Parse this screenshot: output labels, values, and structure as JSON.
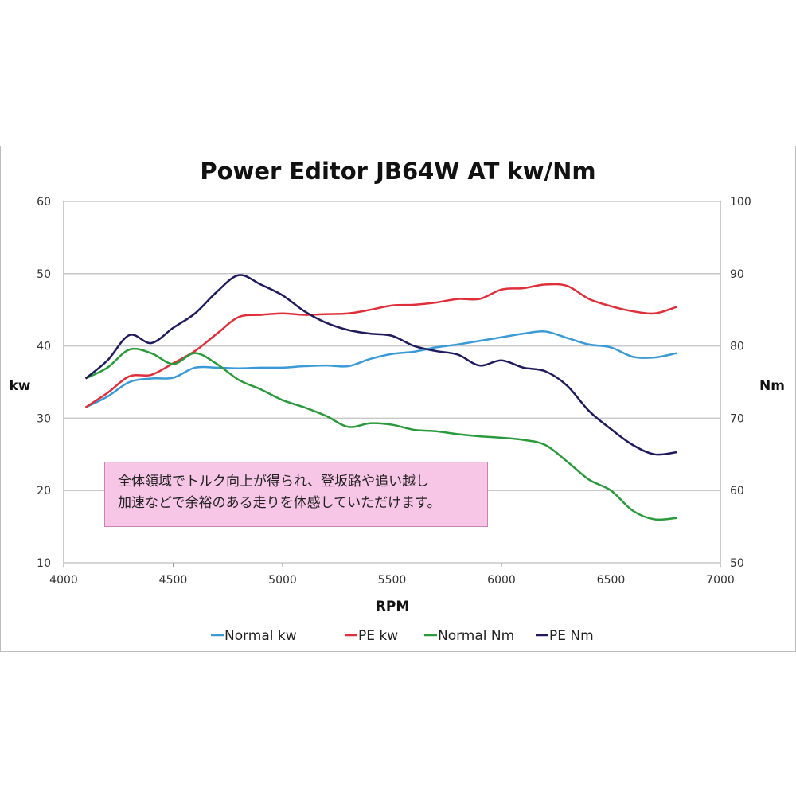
{
  "chart_data": {
    "type": "line",
    "title": "Power Editor JB64W AT kw/Nm",
    "xlabel": "RPM",
    "ylabel_left": "kw",
    "ylabel_right": "Nm",
    "xlim": [
      4000,
      7000
    ],
    "ylim_left": [
      10,
      60
    ],
    "ylim_right": [
      50,
      100
    ],
    "xticks": [
      "4000",
      "4500",
      "5000",
      "5500",
      "6000",
      "6500",
      "7000"
    ],
    "yticks_left": [
      "10",
      "20",
      "30",
      "40",
      "50",
      "60"
    ],
    "yticks_right": [
      "50",
      "60",
      "70",
      "80",
      "90",
      "100"
    ],
    "grid": "horizontal",
    "legend_position": "bottom",
    "x": [
      4100,
      4200,
      4300,
      4400,
      4500,
      4600,
      4700,
      4800,
      4900,
      5000,
      5100,
      5200,
      5300,
      5400,
      5500,
      5600,
      5700,
      5800,
      5900,
      6000,
      6100,
      6200,
      6300,
      6400,
      6500,
      6600,
      6700,
      6800
    ],
    "series": [
      {
        "name": "Normal kw",
        "axis": "left",
        "color": "#3a9ad6",
        "values": [
          31.5,
          33,
          35,
          35.5,
          35.6,
          37,
          37,
          36.9,
          37,
          37,
          37.2,
          37.3,
          37.2,
          38.2,
          38.9,
          39.2,
          39.8,
          40.2,
          40.7,
          41.2,
          41.7,
          42,
          41.1,
          40.2,
          39.8,
          38.5,
          38.4,
          39.0
        ]
      },
      {
        "name": "PE kw",
        "axis": "left",
        "color": "#de2f3a",
        "values": [
          31.5,
          33.5,
          35.8,
          36.0,
          37.6,
          39.3,
          41.7,
          44.0,
          44.3,
          44.5,
          44.3,
          44.4,
          44.5,
          45.0,
          45.6,
          45.7,
          46.0,
          46.5,
          46.5,
          47.8,
          48.0,
          48.5,
          48.3,
          46.5,
          45.5,
          44.8,
          44.5,
          45.4
        ]
      },
      {
        "name": "Normal Nm",
        "axis": "right",
        "color": "#2a9a3c",
        "values": [
          75.5,
          77,
          79.5,
          79,
          77.5,
          79,
          77.5,
          75.3,
          74,
          72.5,
          71.5,
          70.3,
          68.8,
          69.3,
          69.1,
          68.4,
          68.2,
          67.8,
          67.5,
          67.3,
          67,
          66.3,
          64,
          61.5,
          60,
          57.2,
          56,
          56.2
        ]
      },
      {
        "name": "PE Nm",
        "axis": "right",
        "color": "#1f1b5c",
        "values": [
          75.5,
          78,
          81.5,
          80.4,
          82.5,
          84.5,
          87.5,
          89.8,
          88.5,
          87,
          84.8,
          83.2,
          82.2,
          81.7,
          81.4,
          80,
          79.3,
          78.8,
          77.3,
          78,
          77,
          76.5,
          74.5,
          71,
          68.5,
          66.3,
          65,
          65.3
        ]
      }
    ],
    "annotation": [
      "全体領域でトルク向上が得られ、登坂路や追い越し",
      "加速などで余裕のある走りを体感していただけます。"
    ]
  }
}
